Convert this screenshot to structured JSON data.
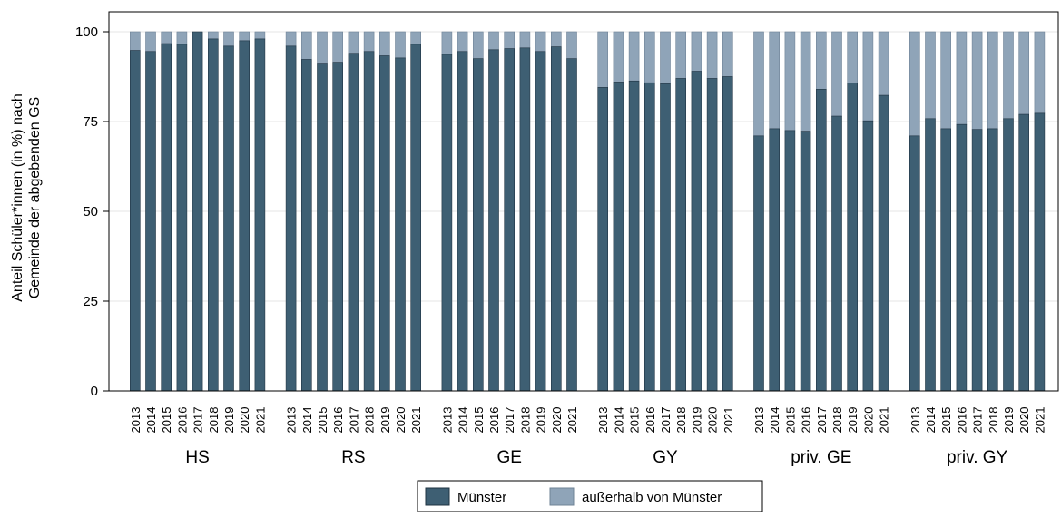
{
  "chart_data": {
    "type": "bar",
    "stacked": true,
    "ylabel_line1": "Anteil Schüler*innen (in %) nach",
    "ylabel_line2": "Gemeinde der abgebenden GS",
    "xlabel": "",
    "ylim": [
      0,
      100
    ],
    "yticks": [
      0,
      25,
      50,
      75,
      100
    ],
    "grid": true,
    "legend_position": "bottom",
    "years": [
      "2013",
      "2014",
      "2015",
      "2016",
      "2017",
      "2018",
      "2019",
      "2020",
      "2021"
    ],
    "groups": [
      {
        "name": "HS",
        "muenster": [
          94.8,
          94.5,
          96.7,
          96.5,
          100.0,
          98.0,
          96.0,
          97.5,
          98.0
        ]
      },
      {
        "name": "RS",
        "muenster": [
          96.0,
          92.3,
          91.0,
          91.5,
          94.0,
          94.5,
          93.3,
          92.7,
          96.5
        ]
      },
      {
        "name": "GE",
        "muenster": [
          93.7,
          94.5,
          92.5,
          95.0,
          95.3,
          95.5,
          94.5,
          95.8,
          92.5
        ]
      },
      {
        "name": "GY",
        "muenster": [
          84.5,
          86.0,
          86.3,
          85.8,
          85.5,
          87.0,
          89.0,
          87.0,
          87.5
        ]
      },
      {
        "name": "priv. GE",
        "muenster": [
          71.0,
          73.0,
          72.5,
          72.3,
          84.0,
          76.5,
          85.7,
          75.2,
          82.3
        ]
      },
      {
        "name": "priv. GY",
        "muenster": [
          71.0,
          75.8,
          73.0,
          74.2,
          72.8,
          73.0,
          75.8,
          77.0,
          77.3
        ]
      }
    ],
    "series": [
      {
        "name": "Münster",
        "color": "#3e5f73"
      },
      {
        "name": "außerhalb von Münster",
        "color": "#8fa4b8"
      }
    ],
    "total": 100
  }
}
